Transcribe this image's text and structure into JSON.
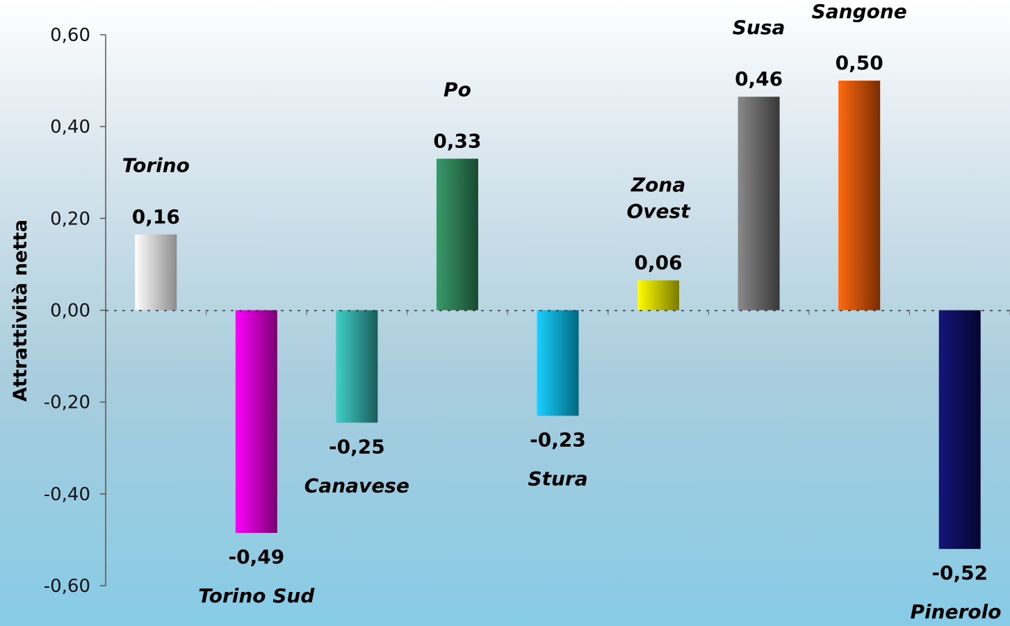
{
  "chart_data": {
    "type": "bar",
    "ylabel": "Attrattività netta",
    "ylim": [
      -0.6,
      0.6
    ],
    "yticks": [
      0.6,
      0.4,
      0.2,
      0.0,
      -0.2,
      -0.4,
      -0.6
    ],
    "ytick_labels": [
      "0,60",
      "0,40",
      "0,20",
      "0,00",
      "-0,20",
      "-0,40",
      "-0,60"
    ],
    "categories": [
      "Torino",
      "Torino Sud",
      "Canavese",
      "Po",
      "Stura",
      "Zona Ovest",
      "Susa",
      "Sangone",
      "Pinerolo"
    ],
    "values": [
      0.165,
      -0.485,
      -0.245,
      0.33,
      -0.23,
      0.065,
      0.465,
      0.5,
      -0.52
    ],
    "value_labels": [
      "0,16",
      "-0,49",
      "-0,25",
      "0,33",
      "-0,23",
      "0,06",
      "0,46",
      "0,50",
      "-0,52"
    ],
    "colors": [
      [
        "#ffffff",
        "#8c8c8c"
      ],
      [
        "#ff00ff",
        "#7a0070"
      ],
      [
        "#3fd0c8",
        "#1a5c5c"
      ],
      [
        "#3a9a6a",
        "#174a30"
      ],
      [
        "#1ad0ff",
        "#006880"
      ],
      [
        "#ffff00",
        "#7a7a00"
      ],
      [
        "#8a8a8a",
        "#383838"
      ],
      [
        "#ff6a10",
        "#7a2c00"
      ],
      [
        "#15157a",
        "#050530"
      ]
    ],
    "grid": false,
    "zero_line": "dashed"
  }
}
